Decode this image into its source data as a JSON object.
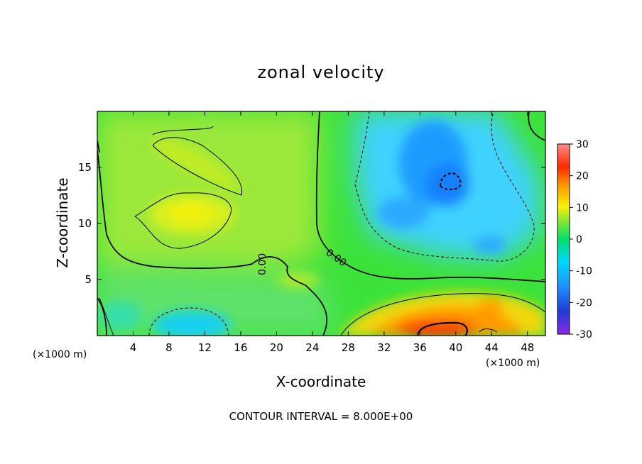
{
  "title": "zonal velocity",
  "xlabel": "X-coordinate",
  "ylabel": "Z-coordinate",
  "x_unit_left": "(×1000 m)",
  "x_unit_right": "(×1000 m)",
  "footer": "CONTOUR INTERVAL = 8.000E+00",
  "chart_data": {
    "type": "heatmap",
    "title": "zonal velocity",
    "xlabel": "X-coordinate",
    "ylabel": "Z-coordinate",
    "xlim": [
      0,
      50
    ],
    "ylim": [
      0,
      20
    ],
    "x_ticks": [
      4,
      8,
      12,
      16,
      20,
      24,
      28,
      32,
      36,
      40,
      44,
      48
    ],
    "y_ticks": [
      5,
      10,
      15
    ],
    "colorbar": {
      "ticks": [
        30,
        20,
        10,
        0,
        -10,
        -20,
        -30
      ],
      "range": [
        -30,
        30
      ],
      "colors": [
        "#8a2be2",
        "#1f3bd8",
        "#1e90ff",
        "#00d8ff",
        "#00e06a",
        "#8fe830",
        "#f6f20a",
        "#ff9a00",
        "#ff2a00",
        "#ff7f7f"
      ]
    },
    "contour_interval": 8.0,
    "contour_labels": [
      "0.00",
      "0.00"
    ],
    "regions": [
      {
        "name": "upper-left positive cell",
        "x": 10,
        "z": 11,
        "value": 11
      },
      {
        "name": "upper-right negative cell",
        "x": 39,
        "z": 13,
        "value": -12
      },
      {
        "name": "surface jet",
        "x": 39,
        "z": 0.5,
        "value": 22
      },
      {
        "name": "lower-left negative patch",
        "x": 11,
        "z": 1,
        "value": -6
      }
    ]
  }
}
